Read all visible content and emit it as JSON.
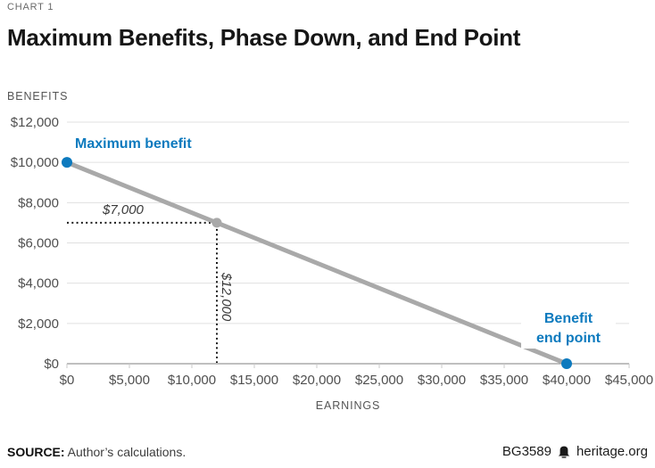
{
  "header": {
    "kicker": "CHART 1",
    "title": "Maximum Benefits, Phase Down, and End Point"
  },
  "footer": {
    "source_label": "SOURCE:",
    "source_text": " Author’s calculations.",
    "doc_id": "BG3589",
    "site": "heritage.org"
  },
  "colors": {
    "accent": "#0d7abe",
    "line": "#a9a9a9",
    "grid": "#e0e0e0",
    "axis": "#999999",
    "tick": "#c9c9c9",
    "guide": "#1a1a1a"
  },
  "chart_data": {
    "type": "line",
    "title": "Maximum Benefits, Phase Down, and End Point",
    "xlabel": "EARNINGS",
    "ylabel": "BENEFITS",
    "xlim": [
      0,
      45000
    ],
    "ylim": [
      0,
      12000
    ],
    "grid": "horizontal-only",
    "legend": "none",
    "x_tick_values": [
      0,
      5000,
      10000,
      15000,
      20000,
      25000,
      30000,
      35000,
      40000,
      45000
    ],
    "x_tick_labels": [
      "$0",
      "$5,000",
      "$10,000",
      "$15,000",
      "$20,000",
      "$25,000",
      "$30,000",
      "$35,000",
      "$40,000",
      "$45,000"
    ],
    "y_tick_values": [
      0,
      2000,
      4000,
      6000,
      8000,
      10000,
      12000
    ],
    "y_tick_labels": [
      "$0",
      "$2,000",
      "$4,000",
      "$6,000",
      "$8,000",
      "$10,000",
      "$12,000"
    ],
    "series": [
      {
        "name": "benefit-phase-down",
        "points": [
          [
            0,
            10000
          ],
          [
            12000,
            7000
          ],
          [
            40000,
            0
          ]
        ]
      }
    ],
    "markers": [
      {
        "name": "maximum-benefit-point",
        "x": 0,
        "y": 10000,
        "color": "#0d7abe",
        "r": 6
      },
      {
        "name": "phase-down-point",
        "x": 12000,
        "y": 7000,
        "color": "#a9a9a9",
        "r": 5.5
      },
      {
        "name": "benefit-end-point",
        "x": 40000,
        "y": 0,
        "color": "#0d7abe",
        "r": 6
      }
    ],
    "guides": [
      {
        "name": "benefit-level-guide",
        "orientation": "horizontal",
        "at": 7000,
        "from": 0,
        "to": 12000
      },
      {
        "name": "earnings-level-guide",
        "orientation": "vertical",
        "at": 12000,
        "from": 0,
        "to": 7000
      }
    ],
    "annotations": {
      "max_benefit": {
        "text": "Maximum benefit",
        "anchor_x": 0,
        "anchor_y": 10000
      },
      "phase_benefit": {
        "text": "$7,000",
        "anchor_x": 0,
        "anchor_y": 7000
      },
      "phase_earnings": {
        "text": "$12,000",
        "anchor_x": 12000,
        "anchor_y": 3500
      },
      "end_point": {
        "text": "Benefit end point",
        "anchor_x": 40000,
        "anchor_y": 0
      }
    }
  }
}
